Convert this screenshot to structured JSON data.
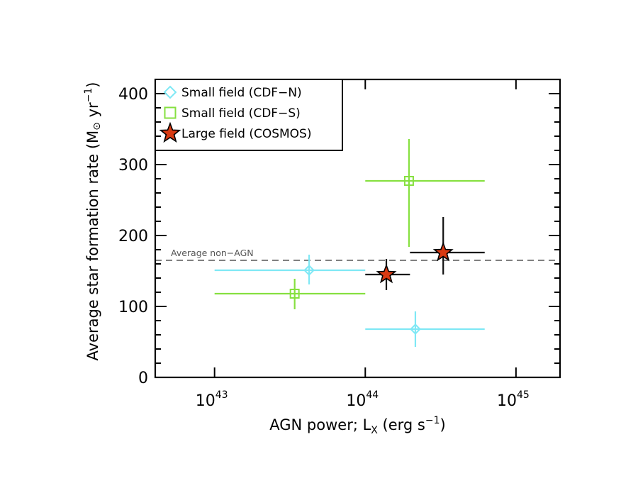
{
  "chart_data": {
    "type": "scatter",
    "title": "",
    "xlabel": {
      "main": "AGN power; L",
      "subscript": "X",
      "unit_pre": " (erg s",
      "unit_sup": "−1",
      "unit_post": ")"
    },
    "ylabel": {
      "main": "Average star formation rate (M",
      "symbol": "⊙",
      "unit_pre": " yr",
      "unit_sup": "−1",
      "unit_post": ")"
    },
    "xscale": "log",
    "xlim": [
      4.04e+42,
      1.96e+45
    ],
    "ylim": [
      0,
      420
    ],
    "x_ticks": [
      {
        "value": 1e+43,
        "base": "10",
        "exp": "43"
      },
      {
        "value": 1e+44,
        "base": "10",
        "exp": "44"
      },
      {
        "value": 1e+45,
        "base": "10",
        "exp": "45"
      }
    ],
    "y_ticks": [
      {
        "value": 0,
        "label": "0"
      },
      {
        "value": 100,
        "label": "100"
      },
      {
        "value": 200,
        "label": "200"
      },
      {
        "value": 300,
        "label": "300"
      },
      {
        "value": 400,
        "label": "400"
      }
    ],
    "y_minor_step": 20,
    "grid": false,
    "legend": {
      "placement": "top-left",
      "entries": [
        {
          "label": "Small field (CDF−N)",
          "marker": "diamond",
          "series": 0
        },
        {
          "label": "Small field (CDF−S)",
          "marker": "square",
          "series": 1
        },
        {
          "label": "Large field (COSMOS)",
          "marker": "star",
          "series": 2
        }
      ]
    },
    "reference_line": {
      "y": 165,
      "label": "Average non−AGN",
      "style": "dashed",
      "color": "#808080"
    },
    "series": [
      {
        "name": "Small field (CDF−N)",
        "marker": "diamond",
        "color": "#7fe8f5",
        "points": [
          {
            "x": 4.24e+43,
            "y": 151,
            "x_lo": 1e+43,
            "x_hi": 1e+44,
            "y_lo": 131,
            "y_hi": 173
          },
          {
            "x": 2.15e+44,
            "y": 68,
            "x_lo": 1e+44,
            "x_hi": 6.2e+44,
            "y_lo": 43,
            "y_hi": 93
          }
        ]
      },
      {
        "name": "Small field (CDF−S)",
        "marker": "square",
        "color": "#86e040",
        "points": [
          {
            "x": 3.4e+43,
            "y": 118,
            "x_lo": 1e+43,
            "x_hi": 1e+44,
            "y_lo": 96,
            "y_hi": 139
          },
          {
            "x": 1.95e+44,
            "y": 277,
            "x_lo": 1e+44,
            "x_hi": 6.2e+44,
            "y_lo": 184,
            "y_hi": 336
          }
        ]
      },
      {
        "name": "Large field (COSMOS)",
        "marker": "star",
        "color": "#111111",
        "fill": "#d93a12",
        "points": [
          {
            "x": 1.38e+44,
            "y": 145,
            "x_lo": 1e+44,
            "x_hi": 1.98e+44,
            "y_lo": 123,
            "y_hi": 167
          },
          {
            "x": 3.29e+44,
            "y": 176,
            "x_lo": 1.98e+44,
            "x_hi": 6.2e+44,
            "y_lo": 145,
            "y_hi": 226
          }
        ]
      }
    ]
  }
}
